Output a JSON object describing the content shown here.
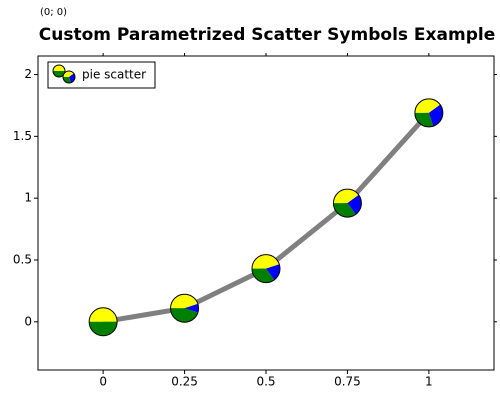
{
  "corner_label": "(0; 0)",
  "chart_data": {
    "type": "scatter",
    "title": "Custom Parametrized Scatter Symbols Example",
    "x": [
      0,
      0.25,
      0.5,
      0.75,
      1
    ],
    "series": [
      {
        "name": "pie scatter",
        "color": "#808080",
        "values": [
          0,
          0.11,
          0.43,
          0.96,
          1.69
        ],
        "slice_colors": [
          "#ffff00",
          "#0000ff",
          "#008000"
        ],
        "slices": [
          [
            0.5,
            0,
            0.5
          ],
          [
            0.45,
            0.1,
            0.45
          ],
          [
            0.45,
            0.2,
            0.35
          ],
          [
            0.4,
            0.25,
            0.35
          ],
          [
            0.4,
            0.3,
            0.3
          ]
        ]
      }
    ],
    "xlim": [
      -0.2,
      1.2
    ],
    "ylim": [
      -0.39,
      2.15
    ],
    "xticks": [
      0,
      0.25,
      0.5,
      0.75,
      1
    ],
    "yticks": [
      0,
      0.5,
      1,
      1.5,
      2
    ],
    "legend": "top-left"
  }
}
